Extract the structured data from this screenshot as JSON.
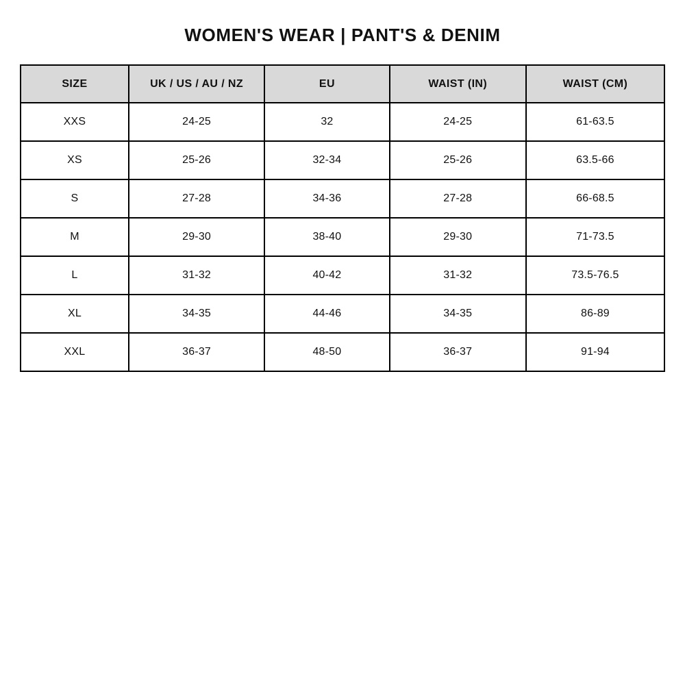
{
  "title": "WOMEN'S WEAR | PANT'S & DENIM",
  "table": {
    "headers": [
      "SIZE",
      "UK / US / AU / NZ",
      "EU",
      "WAIST (IN)",
      "WAIST (CM)"
    ],
    "column_widths_percent": [
      16.8,
      21.1,
      19.4,
      21.2,
      21.5
    ],
    "rows": [
      [
        "XXS",
        "24-25",
        "32",
        "24-25",
        "61-63.5"
      ],
      [
        "XS",
        "25-26",
        "32-34",
        "25-26",
        "63.5-66"
      ],
      [
        "S",
        "27-28",
        "34-36",
        "27-28",
        "66-68.5"
      ],
      [
        "M",
        "29-30",
        "38-40",
        "29-30",
        "71-73.5"
      ],
      [
        "L",
        "31-32",
        "40-42",
        "31-32",
        "73.5-76.5"
      ],
      [
        "XL",
        "34-35",
        "44-46",
        "34-35",
        "86-89"
      ],
      [
        "XXL",
        "36-37",
        "48-50",
        "36-37",
        "91-94"
      ]
    ]
  },
  "colors": {
    "header_background": "#d9d9d9",
    "border": "#000000",
    "text": "#111111",
    "page_background": "#ffffff"
  }
}
